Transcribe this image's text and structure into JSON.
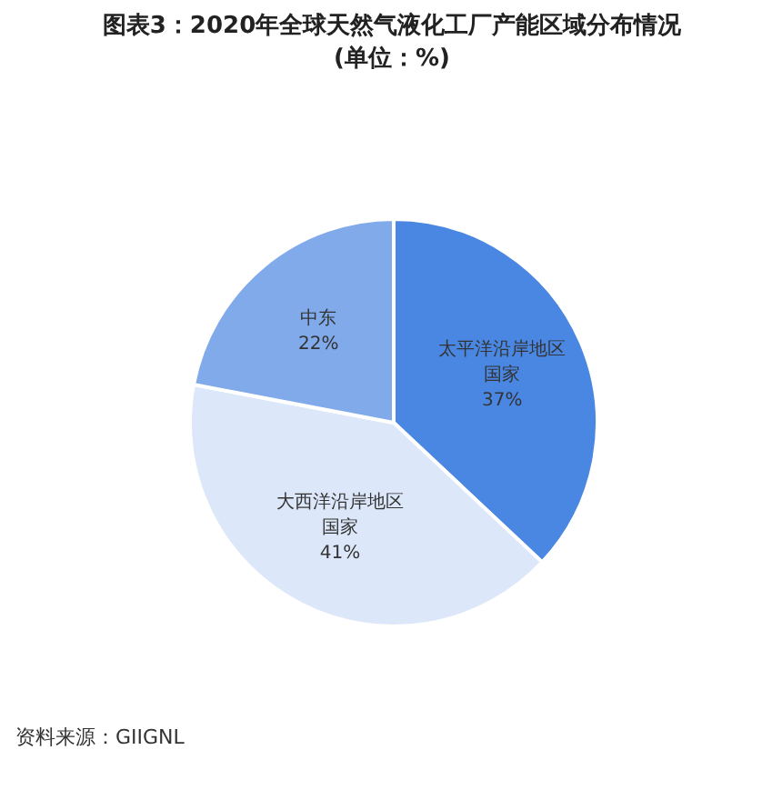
{
  "chart_data": {
    "type": "pie",
    "title": "图表3：2020年全球天然气液化工厂产能区域分布情况\n(单位：%)",
    "categories": [
      "太平洋沿岸地区国家",
      "大西洋沿岸地区国家",
      "中东"
    ],
    "values": [
      37,
      41,
      22
    ],
    "colors": [
      "#4a87e2",
      "#dce7f9",
      "#80aaea"
    ],
    "value_labels": [
      "37%",
      "41%",
      "22%"
    ],
    "annotations": [
      "资料来源：GIIGNL"
    ]
  }
}
